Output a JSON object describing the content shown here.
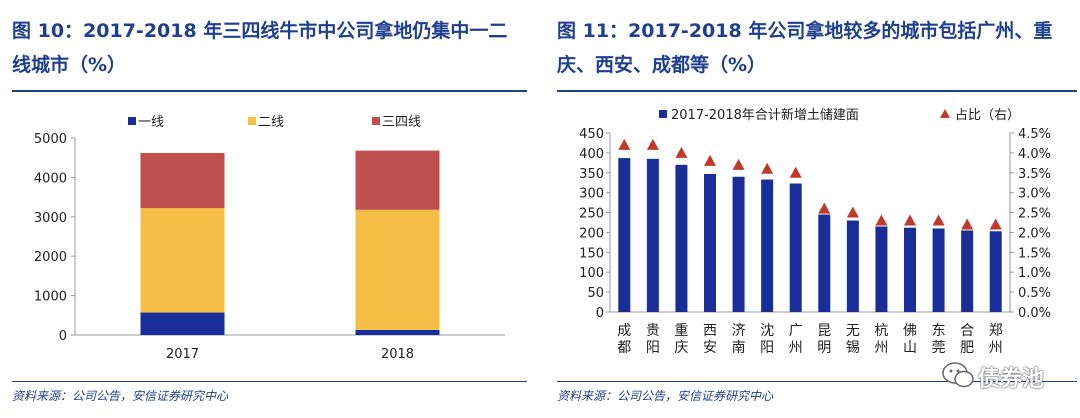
{
  "left": {
    "title": "图 10：2017-2018 年三四线牛市中公司拿地仍集中一二线城市（%）",
    "source": "资料来源：公司公告，安信证券研究中心",
    "chart_data": {
      "type": "bar",
      "stacked": true,
      "categories": [
        "2017",
        "2018"
      ],
      "series": [
        {
          "name": "一线",
          "color": "#1A2E9A",
          "values": [
            570,
            130
          ]
        },
        {
          "name": "二线",
          "color": "#F5BF47",
          "values": [
            2650,
            3050
          ]
        },
        {
          "name": "三四线",
          "color": "#C0504D",
          "values": [
            1400,
            1500
          ]
        }
      ],
      "ylim": [
        0,
        5000
      ],
      "yticks": [
        "0",
        "1000",
        "2000",
        "3000",
        "4000",
        "5000"
      ],
      "legend": "top",
      "grid": false
    }
  },
  "right": {
    "title": "图 11：2017-2018 年公司拿地较多的城市包括广州、重庆、西安、成都等（%）",
    "source": "资料来源：公司公告，安信证券研究中心",
    "chart_data": {
      "type": "bar",
      "categories": [
        "成都",
        "贵阳",
        "重庆",
        "西安",
        "济南",
        "沈阳",
        "广州",
        "昆明",
        "无锡",
        "杭州",
        "佛山",
        "东莞",
        "合肥",
        "郑州"
      ],
      "series": [
        {
          "name": "2017-2018年合计新增土储建面",
          "type": "bar",
          "color": "#1A2E9A",
          "axis": "left",
          "values": [
            387,
            385,
            370,
            347,
            340,
            333,
            323,
            245,
            230,
            215,
            212,
            210,
            205,
            203
          ]
        },
        {
          "name": "占比（右）",
          "type": "scatter",
          "marker": "triangle",
          "color": "#C0392B",
          "axis": "right",
          "values": [
            4.2,
            4.2,
            4.0,
            3.8,
            3.7,
            3.6,
            3.5,
            2.6,
            2.5,
            2.3,
            2.3,
            2.3,
            2.2,
            2.2
          ]
        }
      ],
      "ylim_left": [
        0,
        450
      ],
      "yticks_left": [
        "0",
        "50",
        "100",
        "150",
        "200",
        "250",
        "300",
        "350",
        "400",
        "450"
      ],
      "ylim_right": [
        0,
        4.5
      ],
      "yticks_right": [
        "0.0%",
        "0.5%",
        "1.0%",
        "1.5%",
        "2.0%",
        "2.5%",
        "3.0%",
        "3.5%",
        "4.0%",
        "4.5%"
      ],
      "legend": "top",
      "grid": false
    }
  },
  "watermark": {
    "text": "债券池",
    "icon": "wechat-icon"
  }
}
